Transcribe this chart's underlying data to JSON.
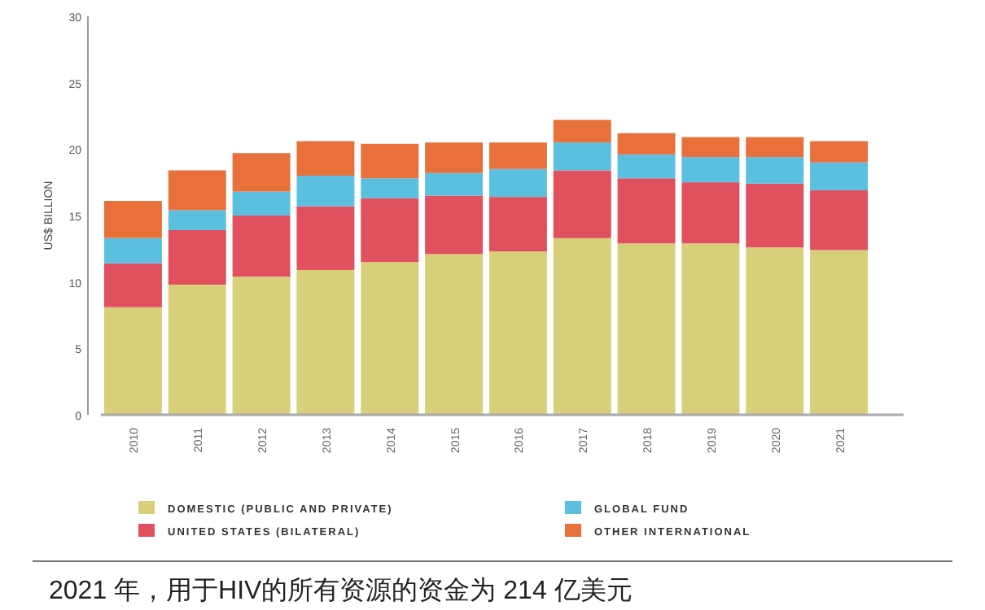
{
  "chart_data": {
    "type": "bar",
    "stacked": true,
    "ylabel": "US$ BILLION",
    "categories": [
      "2010",
      "2011",
      "2012",
      "2013",
      "2014",
      "2015",
      "2016",
      "2017",
      "2018",
      "2019",
      "2020",
      "2021"
    ],
    "series": [
      {
        "name": "DOMESTIC (PUBLIC AND PRIVATE)",
        "color": "#d9cf7a",
        "values": [
          8.1,
          9.8,
          10.4,
          10.9,
          11.5,
          12.1,
          12.3,
          13.3,
          12.9,
          12.9,
          12.6,
          12.4
        ]
      },
      {
        "name": "UNITED STATES (BILATERAL)",
        "color": "#e0505e",
        "values": [
          3.3,
          4.1,
          4.6,
          4.8,
          4.8,
          4.4,
          4.1,
          5.1,
          4.9,
          4.6,
          4.8,
          4.5
        ]
      },
      {
        "name": "GLOBAL FUND",
        "color": "#5bc0e0",
        "values": [
          1.9,
          1.5,
          1.8,
          2.3,
          1.5,
          1.7,
          2.1,
          2.1,
          1.8,
          1.9,
          2.0,
          2.1
        ]
      },
      {
        "name": "OTHER INTERNATIONAL",
        "color": "#e8703a",
        "values": [
          2.8,
          3.0,
          2.9,
          2.6,
          2.6,
          2.3,
          2.0,
          1.7,
          1.6,
          1.5,
          1.5,
          1.6
        ]
      }
    ],
    "ylim": [
      0,
      30
    ],
    "yticks": [
      0,
      5,
      10,
      15,
      20,
      25,
      30
    ],
    "legend": "bottom",
    "annotations": [
      "2021 年，用于HIV的所有资源的资金为 214 亿美元"
    ]
  }
}
